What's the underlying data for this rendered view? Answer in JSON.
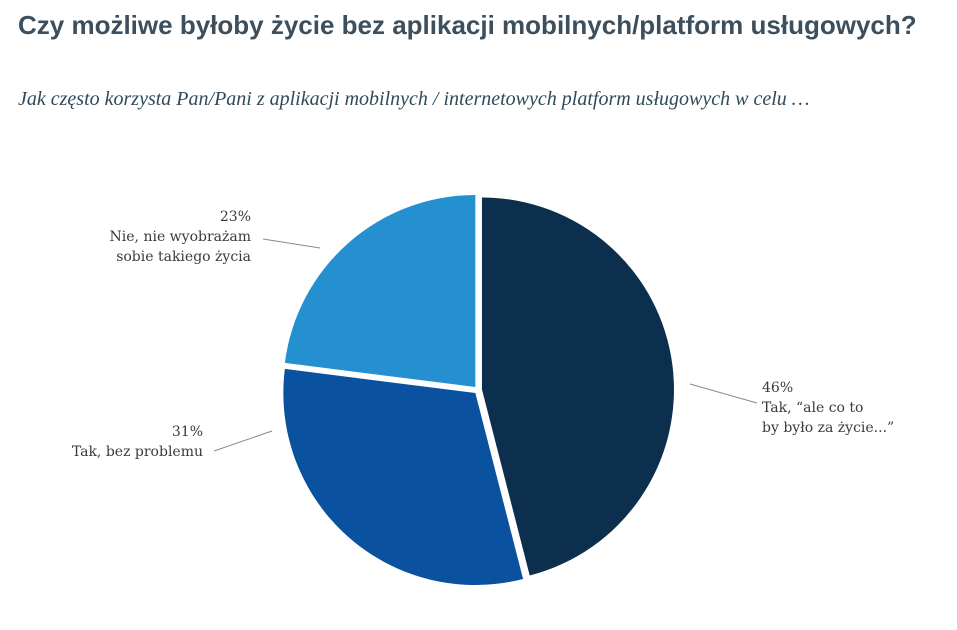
{
  "header": {
    "title": "Czy możliwe byłoby życie bez aplikacji mobilnych/platform usługowych?",
    "subtitle": "Jak często korzysta Pan/Pani z aplikacji mobilnych / internetowych platform usługowych w celu …"
  },
  "chart_data": {
    "type": "pie",
    "title": "Czy możliwe byłoby życie bez aplikacji mobilnych/platform usługowych?",
    "subtitle": "Jak często korzysta Pan/Pani z aplikacji mobilnych / internetowych platform usługowych w celu …",
    "slices": [
      {
        "label_lines": [
          "Tak, “ale co to",
          "by było za życie...”"
        ],
        "value": 46,
        "value_label": "46%",
        "color": "#0b2f4d"
      },
      {
        "label_lines": [
          "Tak, bez problemu"
        ],
        "value": 31,
        "value_label": "31%",
        "color": "#0a52a0"
      },
      {
        "label_lines": [
          "Nie, nie wyobrażam",
          "sobie takiego życia"
        ],
        "value": 23,
        "value_label": "23%",
        "color": "#2590d0"
      }
    ]
  }
}
